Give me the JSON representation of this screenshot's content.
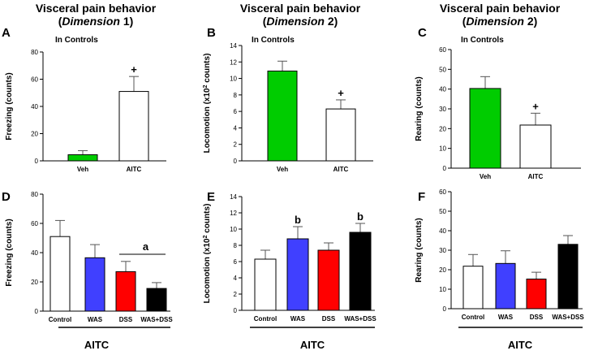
{
  "titles": [
    {
      "line1": "Visceral pain behavior",
      "dim_pre": "(",
      "dim_word": "Dimension",
      "dim_num": " 1",
      "dim_post": ")"
    },
    {
      "line1": "Visceral pain behavior",
      "dim_pre": "(",
      "dim_word": "Dimension",
      "dim_num": " 2",
      "dim_post": ")"
    },
    {
      "line1": "Visceral pain behavior",
      "dim_pre": "(",
      "dim_word": "Dimension",
      "dim_num": " 2",
      "dim_post": ")"
    }
  ],
  "colors": {
    "green": "#00cc00",
    "white": "#ffffff",
    "blue": "#4040ff",
    "red": "#ff0000",
    "black": "#000000"
  },
  "chart_data": [
    {
      "panel": "A",
      "type": "bar",
      "ylabel": "Freezing (counts)",
      "ylim": [
        0,
        80
      ],
      "ticks": [
        "0",
        "20",
        "40",
        "60",
        "80"
      ],
      "note": "In Controls",
      "categories": [
        "Veh",
        "AITC"
      ],
      "values": [
        4.5,
        51
      ],
      "errors": [
        3,
        11
      ],
      "bar_colors": [
        "green",
        "white"
      ],
      "markers": [
        "",
        "+"
      ],
      "group_label": "",
      "sig_label": ""
    },
    {
      "panel": "B",
      "type": "bar",
      "ylabel": "Locomotion (x10",
      "ylabel_sup": "2",
      "ylabel_end": " counts)",
      "ylim": [
        0,
        14
      ],
      "ticks": [
        "0",
        "2",
        "4",
        "6",
        "8",
        "10",
        "12",
        "14"
      ],
      "note": "In Controls",
      "categories": [
        "Veh",
        "AITC"
      ],
      "values": [
        10.9,
        6.3
      ],
      "errors": [
        1.2,
        1.1
      ],
      "bar_colors": [
        "green",
        "white"
      ],
      "markers": [
        "",
        "+"
      ],
      "group_label": "",
      "sig_label": ""
    },
    {
      "panel": "C",
      "type": "bar",
      "ylabel": "Rearing (counts)",
      "ylim": [
        0,
        60
      ],
      "ticks": [
        "0",
        "10",
        "20",
        "30",
        "40",
        "50",
        "60"
      ],
      "note": "In Controls",
      "categories": [
        "Veh",
        "AITC"
      ],
      "values": [
        40.3,
        21.8
      ],
      "errors": [
        6,
        6
      ],
      "bar_colors": [
        "green",
        "white"
      ],
      "markers": [
        "",
        "+"
      ],
      "group_label": "",
      "sig_label": ""
    },
    {
      "panel": "D",
      "type": "bar",
      "ylabel": "Freezing (counts)",
      "ylim": [
        0,
        80
      ],
      "ticks": [
        "0",
        "20",
        "40",
        "60",
        "80"
      ],
      "note": "",
      "categories": [
        "Control",
        "WAS",
        "DSS",
        "WAS+DSS"
      ],
      "values": [
        51,
        36.5,
        27,
        15.5
      ],
      "errors": [
        11,
        9,
        7,
        4
      ],
      "bar_colors": [
        "white",
        "blue",
        "red",
        "black"
      ],
      "markers": [
        "",
        "",
        "",
        ""
      ],
      "group_label": "AITC",
      "sig_label": "a"
    },
    {
      "panel": "E",
      "type": "bar",
      "ylabel": "Locomotion (x10",
      "ylabel_sup": "2",
      "ylabel_end": " counts)",
      "ylim": [
        0,
        14
      ],
      "ticks": [
        "0",
        "2",
        "4",
        "6",
        "8",
        "10",
        "12",
        "14"
      ],
      "note": "",
      "categories": [
        "Control",
        "WAS",
        "DSS",
        "WAS+DSS"
      ],
      "values": [
        6.3,
        8.8,
        7.4,
        9.6
      ],
      "errors": [
        1.1,
        1.5,
        0.9,
        1.1
      ],
      "bar_colors": [
        "white",
        "blue",
        "red",
        "black"
      ],
      "markers": [
        "",
        "b",
        "",
        "b"
      ],
      "group_label": "AITC",
      "sig_label": ""
    },
    {
      "panel": "F",
      "type": "bar",
      "ylabel": "Rearing (counts)",
      "ylim": [
        0,
        60
      ],
      "ticks": [
        "0",
        "10",
        "20",
        "30",
        "40",
        "50",
        "60"
      ],
      "note": "",
      "categories": [
        "Control",
        "WAS",
        "DSS",
        "WAS+DSS"
      ],
      "values": [
        21.8,
        23.2,
        15.2,
        33
      ],
      "errors": [
        6,
        6.5,
        3.5,
        4.5
      ],
      "bar_colors": [
        "white",
        "blue",
        "red",
        "black"
      ],
      "markers": [
        "",
        "",
        "",
        ""
      ],
      "group_label": "AITC",
      "sig_label": ""
    }
  ]
}
